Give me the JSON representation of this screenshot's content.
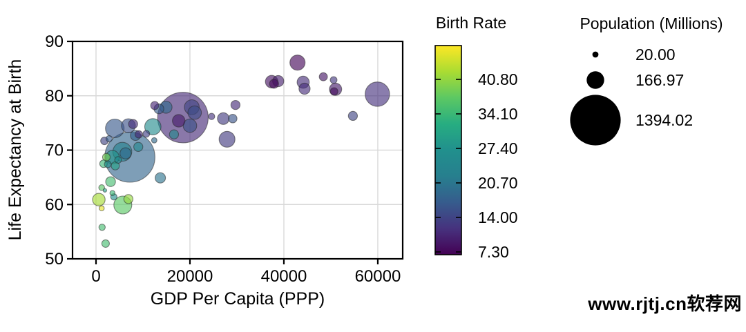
{
  "watermark": "www.rjtj.cn软荐网",
  "colors": {
    "viridis_stops": [
      "#440154",
      "#46327e",
      "#365c8d",
      "#277f8e",
      "#21908d",
      "#27ad81",
      "#5cc863",
      "#aadc32",
      "#fde725"
    ],
    "grid": "#d9d9d9",
    "axis": "#000000",
    "bubble_edge": "#2a2a2a",
    "legend_circle_fill": "#000000"
  },
  "chart_data": {
    "type": "scatter",
    "title": "",
    "xlabel": "GDP Per Capita  (PPP)",
    "ylabel": "Life Expectancy at Birth",
    "xlim": [
      -5000,
      65300
    ],
    "ylim": [
      50,
      90
    ],
    "xticks": [
      0,
      20000,
      40000,
      60000
    ],
    "xtick_labels": [
      "0",
      "20000",
      "40000",
      "60000"
    ],
    "yticks": [
      50,
      60,
      70,
      80,
      90
    ],
    "ytick_labels": [
      "50",
      "60",
      "70",
      "80",
      "90"
    ],
    "grid": true,
    "bubble_opacity": 0.63,
    "color_legend": {
      "title": "Birth Rate",
      "colormap": "viridis",
      "domain": [
        6.8,
        47.4
      ],
      "tick_values": [
        40.8,
        34.1,
        27.4,
        20.7,
        14.0,
        7.3
      ],
      "tick_labels": [
        "40.80",
        "34.10",
        "27.40",
        "20.70",
        "14.00",
        "7.30"
      ]
    },
    "size_legend": {
      "title": "Population (Millions)",
      "entries": [
        {
          "label": "20.00",
          "value": 20.0
        },
        {
          "label": "166.97",
          "value": 166.97
        },
        {
          "label": "1394.02",
          "value": 1394.02
        }
      ]
    },
    "series": [
      {
        "name": "countries",
        "x_field": "gdp_per_capita_ppp",
        "y_field": "life_expectancy",
        "size_field": "population_millions",
        "color_field": "birth_rate",
        "points": [
          {
            "gdp": 2050,
            "life": 52.8,
            "pop": 32,
            "birth": 35
          },
          {
            "gdp": 1300,
            "life": 55.8,
            "pop": 22,
            "birth": 35
          },
          {
            "gdp": 1200,
            "life": 59.3,
            "pop": 14,
            "birth": 46
          },
          {
            "gdp": 5700,
            "life": 59.9,
            "pop": 177,
            "birth": 37
          },
          {
            "gdp": 6900,
            "life": 61.0,
            "pop": 45,
            "birth": 41
          },
          {
            "gdp": 600,
            "life": 60.9,
            "pop": 86,
            "birth": 42
          },
          {
            "gdp": 3800,
            "life": 61.4,
            "pop": 22,
            "birth": 27
          },
          {
            "gdp": 3500,
            "life": 62.1,
            "pop": 14,
            "birth": 34
          },
          {
            "gdp": 1900,
            "life": 62.6,
            "pop": 7,
            "birth": 30
          },
          {
            "gdp": 1200,
            "life": 63.1,
            "pop": 18,
            "birth": 37
          },
          {
            "gdp": 3100,
            "life": 64.2,
            "pop": 53,
            "birth": 35
          },
          {
            "gdp": 13700,
            "life": 64.9,
            "pop": 59,
            "birth": 20.5
          },
          {
            "gdp": 2200,
            "life": 68.7,
            "pop": 32,
            "birth": 39
          },
          {
            "gdp": 1600,
            "life": 67.5,
            "pop": 32,
            "birth": 34
          },
          {
            "gdp": 2500,
            "life": 67.4,
            "pop": 25,
            "birth": 27
          },
          {
            "gdp": 4100,
            "life": 67.1,
            "pop": 36,
            "birth": 30
          },
          {
            "gdp": 4700,
            "life": 68.2,
            "pop": 25,
            "birth": 26
          },
          {
            "gdp": 3500,
            "life": 68.7,
            "pop": 100,
            "birth": 28
          },
          {
            "gdp": 5600,
            "life": 69.7,
            "pop": 196,
            "birth": 23
          },
          {
            "gdp": 6300,
            "life": 69.4,
            "pop": 69,
            "birth": 19
          },
          {
            "gdp": 7200,
            "life": 68.7,
            "pop": 1369,
            "birth": 18.2
          },
          {
            "gdp": 1800,
            "life": 71.7,
            "pop": 32,
            "birth": 14
          },
          {
            "gdp": 2800,
            "life": 72.1,
            "pop": 22,
            "birth": 17
          },
          {
            "gdp": 4000,
            "life": 74.0,
            "pop": 190,
            "birth": 16.5
          },
          {
            "gdp": 6900,
            "life": 74.5,
            "pop": 107,
            "birth": 15.5
          },
          {
            "gdp": 7900,
            "life": 74.8,
            "pop": 45,
            "birth": 11.5
          },
          {
            "gdp": 8400,
            "life": 72.7,
            "pop": 56,
            "birth": 17.5
          },
          {
            "gdp": 9100,
            "life": 72.9,
            "pop": 30,
            "birth": 11
          },
          {
            "gdp": 9000,
            "life": 70.6,
            "pop": 45,
            "birth": 24
          },
          {
            "gdp": 10700,
            "life": 73.0,
            "pop": 25,
            "birth": 13.5
          },
          {
            "gdp": 12400,
            "life": 71.8,
            "pop": 16,
            "birth": 19
          },
          {
            "gdp": 12100,
            "life": 74.3,
            "pop": 144,
            "birth": 25.5
          },
          {
            "gdp": 14900,
            "life": 77.9,
            "pop": 81,
            "birth": 19
          },
          {
            "gdp": 13400,
            "life": 77.6,
            "pop": 53,
            "birth": 17
          },
          {
            "gdp": 12500,
            "life": 78.2,
            "pop": 36,
            "birth": 10.5
          },
          {
            "gdp": 18500,
            "life": 76.0,
            "pop": 1394,
            "birth": 10.9
          },
          {
            "gdp": 20400,
            "life": 77.9,
            "pop": 121,
            "birth": 14
          },
          {
            "gdp": 21000,
            "life": 76.9,
            "pop": 100,
            "birth": 15
          },
          {
            "gdp": 17600,
            "life": 75.4,
            "pop": 87,
            "birth": 9.5
          },
          {
            "gdp": 20000,
            "life": 74.5,
            "pop": 100,
            "birth": 15.5
          },
          {
            "gdp": 16600,
            "life": 72.9,
            "pop": 45,
            "birth": 25
          },
          {
            "gdp": 24600,
            "life": 76.2,
            "pop": 22,
            "birth": 12
          },
          {
            "gdp": 27100,
            "life": 75.8,
            "pop": 76,
            "birth": 13
          },
          {
            "gdp": 29100,
            "life": 75.8,
            "pop": 40,
            "birth": 16
          },
          {
            "gdp": 29700,
            "life": 78.3,
            "pop": 45,
            "birth": 11
          },
          {
            "gdp": 27900,
            "life": 72.0,
            "pop": 137,
            "birth": 12.9
          },
          {
            "gdp": 42900,
            "life": 86.1,
            "pop": 126,
            "birth": 7.4
          },
          {
            "gdp": 37400,
            "life": 82.6,
            "pop": 87,
            "birth": 8.5
          },
          {
            "gdp": 38800,
            "life": 82.7,
            "pop": 69,
            "birth": 9.8
          },
          {
            "gdp": 37900,
            "life": 82.2,
            "pop": 45,
            "birth": 7.8
          },
          {
            "gdp": 44100,
            "life": 82.5,
            "pop": 81,
            "birth": 11.3
          },
          {
            "gdp": 44400,
            "life": 81.3,
            "pop": 69,
            "birth": 11.4
          },
          {
            "gdp": 48400,
            "life": 83.5,
            "pop": 36,
            "birth": 9
          },
          {
            "gdp": 50600,
            "life": 82.9,
            "pop": 25,
            "birth": 12.5
          },
          {
            "gdp": 51000,
            "life": 81.2,
            "pop": 83,
            "birth": 9.5
          },
          {
            "gdp": 50700,
            "life": 80.8,
            "pop": 32,
            "birth": 8
          },
          {
            "gdp": 59900,
            "life": 80.3,
            "pop": 327,
            "birth": 11.8
          },
          {
            "gdp": 54700,
            "life": 76.3,
            "pop": 45,
            "birth": 14
          }
        ]
      }
    ]
  }
}
